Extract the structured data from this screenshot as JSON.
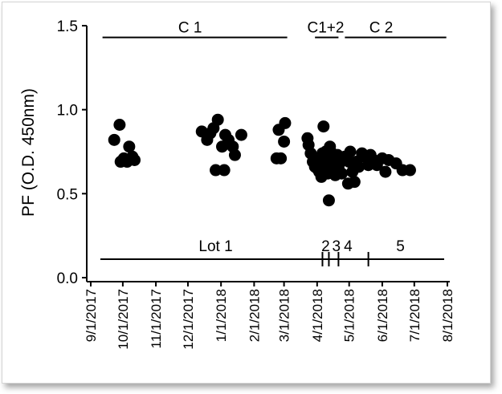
{
  "chart_data": {
    "type": "scatter",
    "title": "",
    "ylabel": "PF (O.D. 450nm)",
    "xlabel": "",
    "ylim": [
      0.0,
      1.5
    ],
    "yticks": [
      0.0,
      0.5,
      1.0,
      1.5
    ],
    "ytick_labels": [
      "0.0",
      "0.5",
      "1.0",
      "1.5"
    ],
    "xlim": [
      "2017-09-01",
      "2018-08-01"
    ],
    "xticks": [
      "2017-09-01",
      "2017-10-01",
      "2017-11-01",
      "2017-12-01",
      "2018-01-01",
      "2018-02-01",
      "2018-03-01",
      "2018-04-01",
      "2018-05-01",
      "2018-06-01",
      "2018-07-01",
      "2018-08-01"
    ],
    "xtick_labels": [
      "9/1/2017",
      "10/1/2017",
      "11/1/2017",
      "12/1/2017",
      "1/1/2018",
      "2/1/2018",
      "3/1/2018",
      "4/1/2018",
      "5/1/2018",
      "6/1/2018",
      "7/1/2018",
      "8/1/2018"
    ],
    "grid": false,
    "marker_color": "#000000",
    "points": [
      [
        "2017-09-23",
        0.82
      ],
      [
        "2017-09-28",
        0.91
      ],
      [
        "2017-09-29",
        0.69
      ],
      [
        "2017-10-02",
        0.71
      ],
      [
        "2017-10-05",
        0.69
      ],
      [
        "2017-10-07",
        0.78
      ],
      [
        "2017-10-10",
        0.72
      ],
      [
        "2017-10-12",
        0.7
      ],
      [
        "2017-12-14",
        0.87
      ],
      [
        "2017-12-19",
        0.82
      ],
      [
        "2017-12-22",
        0.86
      ],
      [
        "2017-12-25",
        0.89
      ],
      [
        "2017-12-27",
        0.64
      ],
      [
        "2017-12-29",
        0.94
      ],
      [
        "2018-01-02",
        0.78
      ],
      [
        "2018-01-04",
        0.64
      ],
      [
        "2018-01-05",
        0.85
      ],
      [
        "2018-01-08",
        0.82
      ],
      [
        "2018-01-12",
        0.78
      ],
      [
        "2018-01-14",
        0.73
      ],
      [
        "2018-01-20",
        0.85
      ],
      [
        "2018-02-22",
        0.71
      ],
      [
        "2018-02-24",
        0.88
      ],
      [
        "2018-02-26",
        0.71
      ],
      [
        "2018-03-01",
        0.81
      ],
      [
        "2018-03-02",
        0.92
      ],
      [
        "2018-03-23",
        0.83
      ],
      [
        "2018-03-24",
        0.79
      ],
      [
        "2018-03-26",
        0.74
      ],
      [
        "2018-03-28",
        0.69
      ],
      [
        "2018-03-30",
        0.66
      ],
      [
        "2018-04-01",
        0.65
      ],
      [
        "2018-04-02",
        0.7
      ],
      [
        "2018-04-03",
        0.63
      ],
      [
        "2018-04-04",
        0.67
      ],
      [
        "2018-04-05",
        0.6
      ],
      [
        "2018-04-06",
        0.74
      ],
      [
        "2018-04-07",
        0.9
      ],
      [
        "2018-04-07",
        0.69
      ],
      [
        "2018-04-08",
        0.63
      ],
      [
        "2018-04-09",
        0.75
      ],
      [
        "2018-04-10",
        0.71
      ],
      [
        "2018-04-11",
        0.62
      ],
      [
        "2018-04-12",
        0.46
      ],
      [
        "2018-04-13",
        0.78
      ],
      [
        "2018-04-13",
        0.68
      ],
      [
        "2018-04-14",
        0.64
      ],
      [
        "2018-04-15",
        0.74
      ],
      [
        "2018-04-16",
        0.7
      ],
      [
        "2018-04-17",
        0.66
      ],
      [
        "2018-04-18",
        0.61
      ],
      [
        "2018-04-19",
        0.71
      ],
      [
        "2018-04-20",
        0.73
      ],
      [
        "2018-04-21",
        0.65
      ],
      [
        "2018-04-22",
        0.68
      ],
      [
        "2018-04-24",
        0.62
      ],
      [
        "2018-04-27",
        0.72
      ],
      [
        "2018-04-30",
        0.56
      ],
      [
        "2018-05-01",
        0.69
      ],
      [
        "2018-05-02",
        0.75
      ],
      [
        "2018-05-04",
        0.63
      ],
      [
        "2018-05-06",
        0.57
      ],
      [
        "2018-05-08",
        0.69
      ],
      [
        "2018-05-10",
        0.66
      ],
      [
        "2018-05-13",
        0.74
      ],
      [
        "2018-05-16",
        0.72
      ],
      [
        "2018-05-19",
        0.67
      ],
      [
        "2018-05-21",
        0.73
      ],
      [
        "2018-05-24",
        0.7
      ],
      [
        "2018-05-27",
        0.67
      ],
      [
        "2018-06-01",
        0.71
      ],
      [
        "2018-06-04",
        0.63
      ],
      [
        "2018-06-07",
        0.7
      ],
      [
        "2018-06-14",
        0.68
      ],
      [
        "2018-06-20",
        0.64
      ],
      [
        "2018-06-27",
        0.64
      ]
    ],
    "annotations": [
      {
        "label": "C 1",
        "start": "2017-09-12",
        "end": "2018-03-04",
        "y": 1.43,
        "label_at": "2017-12-03"
      },
      {
        "label": "C1+2",
        "start": "2018-03-30",
        "end": "2018-04-21",
        "y": 1.43,
        "label_at": "2018-04-09"
      },
      {
        "label": "C 2",
        "start": "2018-04-27",
        "end": "2018-07-31",
        "y": 1.43,
        "label_at": "2018-05-31"
      }
    ],
    "lots": {
      "line_start": "2017-09-10",
      "line_end": "2018-07-29",
      "y": 0.11,
      "label_y": 0.19,
      "ticks": [
        "2018-04-06",
        "2018-04-12",
        "2018-04-21",
        "2018-05-19"
      ],
      "labels": [
        {
          "text": "Lot 1",
          "at": "2017-12-27"
        },
        {
          "text": "2",
          "at": "2018-04-09"
        },
        {
          "text": "3",
          "at": "2018-04-19"
        },
        {
          "text": "4",
          "at": "2018-04-30"
        },
        {
          "text": "5",
          "at": "2018-06-18"
        }
      ]
    }
  }
}
